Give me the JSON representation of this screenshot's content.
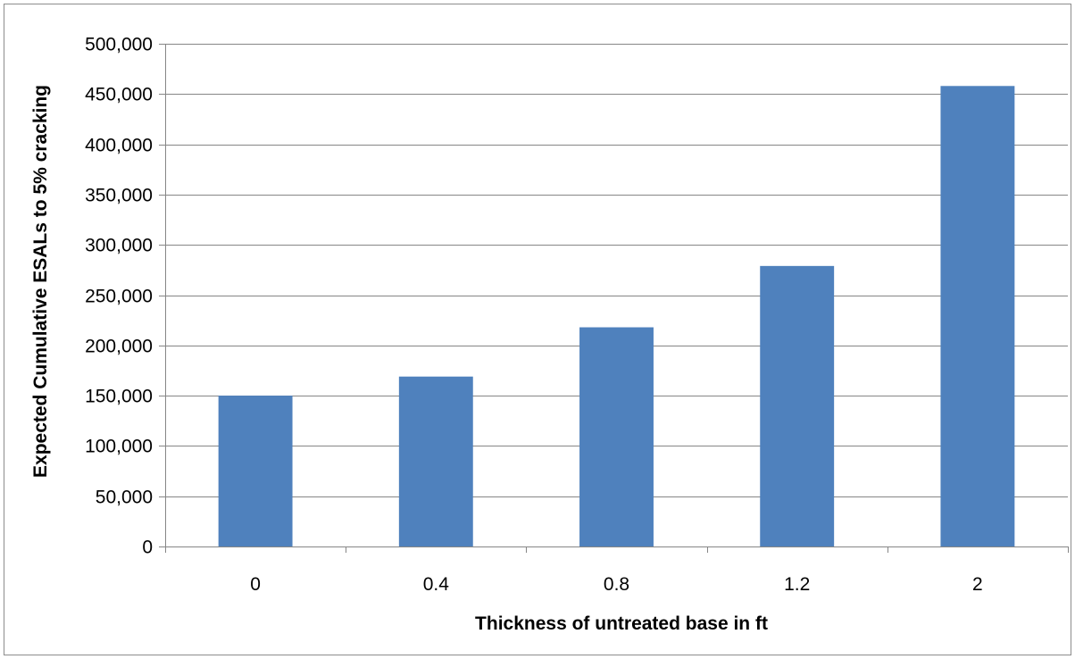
{
  "chart_data": {
    "type": "bar",
    "title": "",
    "xlabel": "Thickness of untreated base in ft",
    "ylabel": "Expected Cumulative ESALs to 5% cracking",
    "categories": [
      "0",
      "0.4",
      "0.8",
      "1.2",
      "2"
    ],
    "values": [
      150000,
      169000,
      218000,
      279000,
      458000
    ],
    "ylim": [
      0,
      500000
    ],
    "y_ticks": [
      0,
      50000,
      100000,
      150000,
      200000,
      250000,
      300000,
      350000,
      400000,
      450000,
      500000
    ],
    "y_tick_labels": [
      "0",
      "50,000",
      "100,000",
      "150,000",
      "200,000",
      "250,000",
      "300,000",
      "350,000",
      "400,000",
      "450,000",
      "500,000"
    ],
    "grid": true,
    "legend": "none",
    "colors": {
      "bar": "#4f81bd",
      "grid": "#868686",
      "axis": "#868686"
    }
  }
}
